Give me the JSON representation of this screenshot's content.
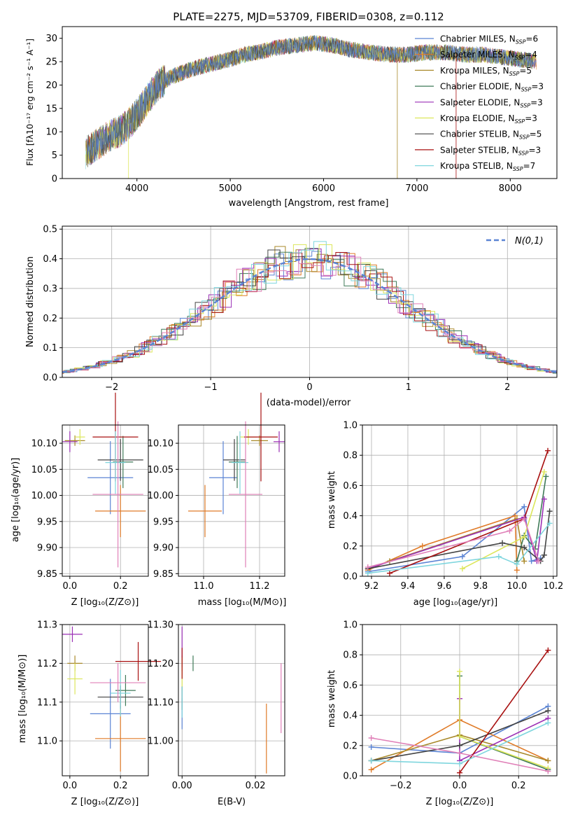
{
  "colors": [
    "#5b84d4",
    "#e07b28",
    "#a8892a",
    "#3f7a58",
    "#9b2fb5",
    "#dce65a",
    "#444444",
    "#a81010",
    "#7fd6de",
    "#e080b8"
  ],
  "legend_entries": [
    {
      "label": "Chabrier MILES, N",
      "sub": "SSP",
      "suffix": "=6"
    },
    {
      "label": "Salpeter MILES, N",
      "sub": "SSP",
      "suffix": "=4"
    },
    {
      "label": "Kroupa MILES, N",
      "sub": "SSP",
      "suffix": "=5"
    },
    {
      "label": "Chabrier ELODIE, N",
      "sub": "SSP",
      "suffix": "=3"
    },
    {
      "label": "Salpeter ELODIE, N",
      "sub": "SSP",
      "suffix": "=3"
    },
    {
      "label": "Kroupa ELODIE, N",
      "sub": "SSP",
      "suffix": "=3"
    },
    {
      "label": "Chabrier STELIB, N",
      "sub": "SSP",
      "suffix": "=5"
    },
    {
      "label": "Salpeter STELIB, N",
      "sub": "SSP",
      "suffix": "=3"
    },
    {
      "label": "Kroupa STELIB, N",
      "sub": "SSP",
      "suffix": "=7"
    }
  ],
  "chart_data": [
    {
      "type": "line",
      "title": "PLATE=2275, MJD=53709, FIBERID=0308, z=0.112",
      "xlabel": "wavelength [Angstrom, rest frame]",
      "ylabel": "Flux [fλ10⁻¹⁷ erg cm⁻² s⁻¹ A⁻¹]",
      "xlim": [
        3200,
        8500
      ],
      "ylim": [
        0,
        32.5
      ],
      "xticks": [
        4000,
        5000,
        6000,
        7000,
        8000
      ],
      "yticks": [
        0,
        5,
        10,
        15,
        20,
        25,
        30
      ],
      "continuum_x": [
        3450,
        3550,
        3700,
        3850,
        3950,
        4050,
        4150,
        4250,
        4400,
        4600,
        4800,
        5000,
        5150,
        5300,
        5500,
        5700,
        5900,
        6100,
        6300,
        6500,
        6700,
        6900,
        7100,
        7300,
        7500,
        7700,
        7900,
        8100,
        8300
      ],
      "continuum_y": [
        5.5,
        7,
        9,
        10.5,
        12.5,
        15,
        18,
        20.5,
        22,
        23.5,
        24.5,
        25.5,
        26.5,
        27,
        28,
        28.5,
        29,
        28.5,
        27.5,
        27,
        26.5,
        26.5,
        27,
        27,
        26.5,
        26.5,
        26,
        25.5,
        25
      ]
    },
    {
      "type": "histogram",
      "xlabel": "(data-model)/error",
      "ylabel": "Normed distribution",
      "xlim": [
        -2.5,
        2.5
      ],
      "ylim": [
        0,
        0.51
      ],
      "xticks": [
        -2,
        -1,
        0,
        1,
        2
      ],
      "yticks": [
        0,
        0.1,
        0.2,
        0.3,
        0.4,
        0.5
      ],
      "gaussian_label": "N(0,1)",
      "gaussian_mean": 0,
      "gaussian_sigma": 1
    },
    {
      "type": "scatter",
      "xlabel": "Z [log₁₀(Z/Z⊙)]",
      "ylabel": "age  [log₁₀(age/yr)]",
      "xlim": [
        -0.03,
        0.31
      ],
      "ylim": [
        9.845,
        10.135
      ],
      "xticks": [
        0.0,
        0.2
      ],
      "yticks": [
        9.85,
        9.9,
        9.95,
        10.0,
        10.05,
        10.1
      ],
      "points": [
        {
          "x": 0.16,
          "y": 10.034,
          "ex": 0.09,
          "ey": 0.07
        },
        {
          "x": 0.2,
          "y": 9.97,
          "ex": 0.1,
          "ey": 0.05
        },
        {
          "x": 0.02,
          "y": 10.105,
          "ex": 0.04,
          "ey": 0.01
        },
        {
          "x": 0.21,
          "y": 10.064,
          "ex": 0.04,
          "ey": 0.05
        },
        {
          "x": 0.0,
          "y": 10.103,
          "ex": 0.03,
          "ey": 0.02
        },
        {
          "x": 0.04,
          "y": 10.112,
          "ex": 0.02,
          "ey": 0.015
        },
        {
          "x": 0.2,
          "y": 10.068,
          "ex": 0.09,
          "ey": 0.04
        },
        {
          "x": 0.18,
          "y": 10.112,
          "ex": 0.09,
          "ey": 0.085
        },
        {
          "x": 0.18,
          "y": 10.063,
          "ex": 0.04,
          "ey": 0.06
        },
        {
          "x": 0.19,
          "y": 10.002,
          "ex": 0.1,
          "ey": 0.14
        }
      ]
    },
    {
      "type": "scatter",
      "xlabel": "mass [log₁₀(M/M⊙)]",
      "ylabel": "",
      "xlim": [
        10.91,
        11.29
      ],
      "ylim": [
        9.845,
        10.135
      ],
      "xticks": [
        11.0,
        11.2
      ],
      "yticks": [
        9.85,
        9.9,
        9.95,
        10.0,
        10.05,
        10.1
      ],
      "points": [
        {
          "x": 11.07,
          "y": 10.034,
          "ex": 0.05,
          "ey": 0.07
        },
        {
          "x": 11.005,
          "y": 9.97,
          "ex": 0.06,
          "ey": 0.05
        },
        {
          "x": 11.2,
          "y": 10.105,
          "ex": 0.03,
          "ey": 0.01
        },
        {
          "x": 11.12,
          "y": 10.064,
          "ex": 0.03,
          "ey": 0.05
        },
        {
          "x": 11.27,
          "y": 10.103,
          "ex": 0.02,
          "ey": 0.02
        },
        {
          "x": 11.16,
          "y": 10.112,
          "ex": 0.03,
          "ey": 0.015
        },
        {
          "x": 11.11,
          "y": 10.068,
          "ex": 0.04,
          "ey": 0.04
        },
        {
          "x": 11.205,
          "y": 10.112,
          "ex": 0.06,
          "ey": 0.085
        },
        {
          "x": 11.13,
          "y": 10.063,
          "ex": 0.03,
          "ey": 0.06
        },
        {
          "x": 11.15,
          "y": 10.002,
          "ex": 0.06,
          "ey": 0.14
        }
      ]
    },
    {
      "type": "line",
      "xlabel": "age  [log₁₀(age/yr)]",
      "ylabel": "mass weight",
      "xlim": [
        9.15,
        10.22
      ],
      "ylim": [
        0,
        1
      ],
      "xticks": [
        9.2,
        9.4,
        9.6,
        9.8,
        10.0,
        10.2
      ],
      "yticks": [
        0.0,
        0.2,
        0.4,
        0.6,
        0.8,
        1.0
      ],
      "series": [
        {
          "x": [
            9.18,
            9.7,
            10.04,
            10.08,
            10.13
          ],
          "y": [
            0.03,
            0.13,
            0.46,
            0.1,
            0.12
          ]
        },
        {
          "x": [
            9.18,
            9.48,
            9.99,
            10.0
          ],
          "y": [
            0.04,
            0.2,
            0.4,
            0.04
          ]
        },
        {
          "x": [
            9.3,
            10.0,
            10.04
          ],
          "y": [
            0.1,
            0.38,
            0.1
          ]
        },
        {
          "x": [
            10.0,
            10.04,
            10.1,
            10.16
          ],
          "y": [
            0.1,
            0.27,
            0.18,
            0.66
          ]
        },
        {
          "x": [
            9.18,
            10.04,
            10.11,
            10.15
          ],
          "y": [
            0.05,
            0.39,
            0.1,
            0.51
          ]
        },
        {
          "x": [
            9.7,
            10.04,
            10.15
          ],
          "y": [
            0.05,
            0.26,
            0.69
          ]
        },
        {
          "x": [
            9.18,
            9.92,
            10.04,
            10.13,
            10.15,
            10.18
          ],
          "y": [
            0.05,
            0.22,
            0.19,
            0.1,
            0.14,
            0.43
          ]
        },
        {
          "x": [
            9.3,
            10.04,
            10.17
          ],
          "y": [
            0.02,
            0.38,
            0.83
          ]
        },
        {
          "x": [
            9.18,
            9.9,
            10.0,
            10.18
          ],
          "y": [
            0.02,
            0.13,
            0.08,
            0.35
          ]
        },
        {
          "x": [
            9.18,
            9.96,
            10.04,
            10.12
          ],
          "y": [
            0.06,
            0.3,
            0.38,
            0.1
          ]
        }
      ]
    },
    {
      "type": "scatter",
      "xlabel": "Z [log₁₀(Z/Z⊙)]",
      "ylabel": "mass [log₁₀(M/M⊙)]",
      "xlim": [
        -0.03,
        0.31
      ],
      "ylim": [
        10.91,
        11.3
      ],
      "xticks": [
        0.0,
        0.2
      ],
      "yticks": [
        11.0,
        11.1,
        11.2,
        11.3
      ],
      "points": [
        {
          "x": 0.16,
          "y": 11.07,
          "ex": 0.08,
          "ey": 0.09
        },
        {
          "x": 0.2,
          "y": 11.006,
          "ex": 0.1,
          "ey": 0.085
        },
        {
          "x": 0.02,
          "y": 11.2,
          "ex": 0.03,
          "ey": 0.02
        },
        {
          "x": 0.22,
          "y": 11.13,
          "ex": 0.04,
          "ey": 0.04
        },
        {
          "x": 0.01,
          "y": 11.275,
          "ex": 0.04,
          "ey": 0.02
        },
        {
          "x": 0.02,
          "y": 11.16,
          "ex": 0.03,
          "ey": 0.04
        },
        {
          "x": 0.2,
          "y": 11.113,
          "ex": 0.09,
          "ey": 0.03
        },
        {
          "x": 0.27,
          "y": 11.205,
          "ex": 0.09,
          "ey": 0.05
        },
        {
          "x": 0.2,
          "y": 11.123,
          "ex": 0.04,
          "ey": 0.06
        },
        {
          "x": 0.19,
          "y": 11.15,
          "ex": 0.11,
          "ey": 0.05
        }
      ]
    },
    {
      "type": "scatter",
      "xlabel": "E(B-V)",
      "ylabel": "",
      "xlim": [
        -0.001,
        0.028
      ],
      "ylim": [
        10.91,
        11.3
      ],
      "xticks": [
        0.0,
        0.02
      ],
      "yticks": [
        11.0,
        11.1,
        11.2,
        11.3
      ],
      "points": [
        {
          "x": 0.0,
          "y": 11.07,
          "ex": 0,
          "ey": 0.04
        },
        {
          "x": 0.023,
          "y": 11.006,
          "ex": 0,
          "ey": 0.09
        },
        {
          "x": 0.0,
          "y": 11.2,
          "ex": 0,
          "ey": 0.02
        },
        {
          "x": 0.003,
          "y": 11.2,
          "ex": 0,
          "ey": 0.02
        },
        {
          "x": 0.0,
          "y": 11.255,
          "ex": 0,
          "ey": 0.04
        },
        {
          "x": 0.0,
          "y": 11.16,
          "ex": 0,
          "ey": 0.03
        },
        {
          "x": 0.0,
          "y": 11.11,
          "ex": 0,
          "ey": 0.03
        },
        {
          "x": 0.0,
          "y": 11.2,
          "ex": 0,
          "ey": 0.04
        },
        {
          "x": 0.0,
          "y": 11.1,
          "ex": 0,
          "ey": 0.04
        },
        {
          "x": 0.027,
          "y": 11.11,
          "ex": 0,
          "ey": 0.09
        }
      ]
    },
    {
      "type": "line",
      "xlabel": "Z [log₁₀(Z/Z⊙)]",
      "ylabel": "mass weight",
      "xlim": [
        -0.33,
        0.33
      ],
      "ylim": [
        0,
        1
      ],
      "xticks": [
        -0.2,
        0.0,
        0.2
      ],
      "yticks": [
        0.0,
        0.2,
        0.4,
        0.6,
        0.8,
        1.0
      ],
      "series": [
        {
          "x": [
            -0.3,
            0.0,
            0.3
          ],
          "y": [
            0.19,
            0.15,
            0.46
          ]
        },
        {
          "x": [
            -0.3,
            0.0,
            0.3
          ],
          "y": [
            0.04,
            0.37,
            0.1
          ]
        },
        {
          "x": [
            -0.3,
            0.0,
            0.3
          ],
          "y": [
            0.1,
            0.27,
            0.1
          ]
        },
        {
          "x": [
            0.0,
            0.0,
            0.3
          ],
          "y": [
            0.66,
            0.26,
            0.04
          ]
        },
        {
          "x": [
            0.0,
            0.0,
            0.3
          ],
          "y": [
            0.51,
            0.1,
            0.38
          ]
        },
        {
          "x": [
            0.0,
            0.0,
            0.3
          ],
          "y": [
            0.69,
            0.26,
            0.05
          ]
        },
        {
          "x": [
            -0.3,
            0.0,
            0.3
          ],
          "y": [
            0.1,
            0.2,
            0.43
          ]
        },
        {
          "x": [
            0.0,
            0.3
          ],
          "y": [
            0.02,
            0.83
          ]
        },
        {
          "x": [
            -0.3,
            0.0,
            0.3
          ],
          "y": [
            0.1,
            0.08,
            0.35
          ]
        },
        {
          "x": [
            -0.3,
            0.0,
            0.3
          ],
          "y": [
            0.25,
            0.15,
            0.03
          ]
        }
      ]
    }
  ]
}
